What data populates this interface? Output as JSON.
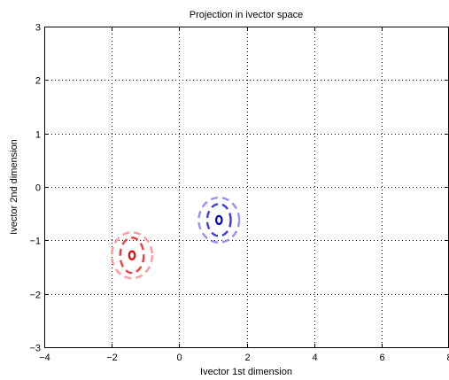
{
  "chart_data": {
    "type": "scatter",
    "title": "Projection in ivector space",
    "xlabel": "Ivector 1st dimension",
    "ylabel": "Ivector 2nd dimension",
    "xlim": [
      -4,
      8
    ],
    "ylim": [
      -3,
      3
    ],
    "xticks": [
      -4,
      -2,
      0,
      2,
      4,
      6,
      8
    ],
    "yticks": [
      -3,
      -2,
      -1,
      0,
      1,
      2,
      3
    ],
    "xtick_labels": [
      "−4",
      "−2",
      "0",
      "2",
      "4",
      "6",
      "8"
    ],
    "ytick_labels": [
      "−3",
      "−2",
      "−1",
      "0",
      "1",
      "2",
      "3"
    ],
    "grid": true,
    "grid_style": "dotted",
    "series": [
      {
        "marker": "o",
        "color": "#ee0000",
        "center": [
          -1.4,
          -1.28
        ],
        "ellipses": [
          {
            "rx": 0.35,
            "ry": 0.33,
            "color": "#ee3030",
            "opacity": 0.95
          },
          {
            "rx": 0.6,
            "ry": 0.43,
            "color": "#ff9090",
            "opacity": 0.9
          }
        ]
      },
      {
        "marker": "o",
        "color": "#0000cc",
        "center": [
          1.18,
          -0.62
        ],
        "ellipses": [
          {
            "rx": 0.35,
            "ry": 0.3,
            "color": "#3333dd",
            "opacity": 0.95
          },
          {
            "rx": 0.6,
            "ry": 0.42,
            "color": "#8888ee",
            "opacity": 0.9
          }
        ]
      }
    ]
  }
}
